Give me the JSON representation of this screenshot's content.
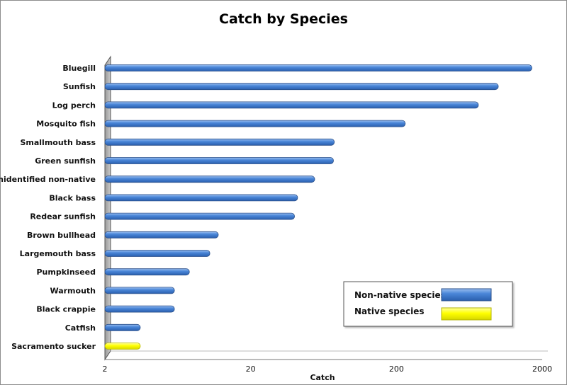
{
  "chart_data": {
    "type": "bar",
    "orientation": "horizontal",
    "title": "Catch by Species",
    "xlabel": "Catch",
    "ylabel": "",
    "xscale": "log",
    "xlim": [
      2,
      2000
    ],
    "xticks": [
      "2",
      "20",
      "200",
      "2000"
    ],
    "grid": false,
    "legend_position": "bottom-right",
    "categories": [
      "Bluegill",
      "Sunfish",
      "Log perch",
      "Mosquito fish",
      "Smallmouth bass",
      "Green sunfish",
      "Unidentified non-native",
      "Black bass",
      "Redear sunfish",
      "Brown bullhead",
      "Largemouth bass",
      "Pumpkinseed",
      "Warmouth",
      "Black crappie",
      "Catfish",
      "Sacramento sucker"
    ],
    "values": [
      1700,
      1000,
      730,
      230,
      75,
      74,
      55,
      42,
      40,
      12,
      10.5,
      7.6,
      6,
      6,
      3.5,
      3.5
    ],
    "groups": [
      "Non-native species",
      "Non-native species",
      "Non-native species",
      "Non-native species",
      "Non-native species",
      "Non-native species",
      "Non-native species",
      "Non-native species",
      "Non-native species",
      "Non-native species",
      "Non-native species",
      "Non-native species",
      "Non-native species",
      "Non-native species",
      "Non-native species",
      "Native species"
    ],
    "series": [
      {
        "name": "Non-native species",
        "color": "#4a86d8"
      },
      {
        "name": "Native species",
        "color": "#ffff00"
      }
    ]
  }
}
